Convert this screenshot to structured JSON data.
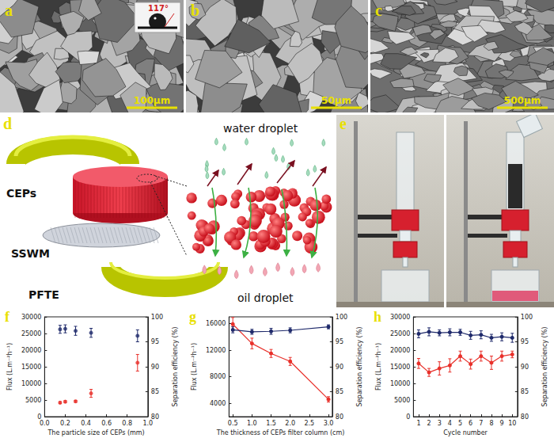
{
  "panels": {
    "a": {
      "label": "a",
      "scale_bar": "100μm",
      "contact_angle": "117°"
    },
    "b": {
      "label": "b",
      "scale_bar": "50μm"
    },
    "c": {
      "label": "c",
      "scale_bar": "500μm"
    },
    "d": {
      "label": "d",
      "parts": [
        "CEPs",
        "SSWM",
        "PFTE"
      ],
      "water": "water droplet",
      "oil": "oil droplet"
    },
    "e": {
      "label": "e"
    }
  },
  "chart_data": [
    {
      "type": "scatter",
      "title": "f",
      "x_label": "The particle size of CEPs (mm)",
      "y_label": "Flux (L.m⁻²h⁻¹)",
      "y2_label": "Separation efficiency (%)",
      "x": [
        0.15,
        0.2,
        0.3,
        0.45,
        0.9
      ],
      "series": [
        {
          "color": "#e8302a",
          "values": [
            4200,
            4500,
            4600,
            7000,
            16200
          ],
          "errors": [
            300,
            300,
            300,
            1200,
            2500
          ]
        },
        {
          "color": "#1f2a6b",
          "axis": "y2",
          "values": [
            97.5,
            97.6,
            97.2,
            96.8,
            96.2
          ],
          "errors": [
            0.8,
            0.8,
            0.9,
            0.9,
            1.2
          ]
        }
      ],
      "xlim": [
        0,
        1
      ],
      "xticks": [
        {
          "value": 0,
          "label": "0.0"
        },
        0.2,
        0.4,
        0.6,
        0.8,
        {
          "value": 1,
          "label": "1.0"
        }
      ],
      "ylim": [
        0,
        30000
      ],
      "yticks": [
        0,
        5000,
        10000,
        15000,
        20000,
        25000,
        30000
      ],
      "y2lim": [
        80,
        100
      ],
      "y2ticks": [
        80,
        85,
        90,
        95,
        100
      ],
      "grid": false,
      "marker": "circle"
    },
    {
      "type": "line",
      "title": "g",
      "x_label": "The thickness of CEPs filter column (cm)",
      "y_label": "Flux (L.m⁻²h⁻¹)",
      "y2_label": "Separation efficiency (%)",
      "x": [
        0.5,
        1.0,
        1.5,
        2.0,
        3.0
      ],
      "series": [
        {
          "color": "#e8302a",
          "values": [
            15900,
            13000,
            11500,
            10300,
            4600
          ],
          "errors": [
            1000,
            800,
            600,
            600,
            400
          ]
        },
        {
          "color": "#1f2a6b",
          "axis": "y2",
          "values": [
            97.4,
            97.0,
            97.1,
            97.3,
            98.0
          ],
          "errors": [
            0.6,
            0.5,
            0.6,
            0.5,
            0.4
          ]
        }
      ],
      "xlim": [
        0.4,
        3.1
      ],
      "xticks": [
        0.5,
        {
          "value": 1,
          "label": "1.0"
        },
        1.5,
        {
          "value": 2,
          "label": "2.0"
        },
        2.5,
        {
          "value": 3,
          "label": "3.0"
        }
      ],
      "ylim": [
        2000,
        17000
      ],
      "yticks": [
        4000,
        8000,
        12000,
        16000
      ],
      "y2lim": [
        80,
        100
      ],
      "y2ticks": [
        80,
        85,
        90,
        95,
        100
      ],
      "grid": false,
      "marker": "circle"
    },
    {
      "type": "line",
      "title": "h",
      "x_label": "Cycle number",
      "y_label": "Flux (L.m⁻²h⁻¹)",
      "y2_label": "Separation efficiency (%)",
      "x": [
        1,
        2,
        3,
        4,
        5,
        6,
        7,
        8,
        9,
        10
      ],
      "series": [
        {
          "color": "#e8302a",
          "values": [
            16000,
            13300,
            14500,
            15400,
            18200,
            15800,
            18200,
            16200,
            18200,
            18700
          ],
          "errors": [
            1500,
            1200,
            2000,
            2000,
            1500,
            1500,
            1500,
            2000,
            1500,
            1000
          ]
        },
        {
          "color": "#1f2a6b",
          "axis": "y2",
          "values": [
            96.6,
            97.0,
            96.8,
            96.9,
            96.9,
            96.3,
            96.4,
            95.8,
            96.0,
            95.8
          ],
          "errors": [
            0.8,
            0.8,
            0.6,
            0.7,
            0.6,
            0.8,
            0.8,
            0.7,
            0.8,
            0.9
          ]
        }
      ],
      "xlim": [
        0.5,
        10.5
      ],
      "xticks": [
        1,
        2,
        3,
        4,
        5,
        6,
        7,
        8,
        9,
        10
      ],
      "ylim": [
        0,
        30000
      ],
      "yticks": [
        0,
        5000,
        10000,
        15000,
        20000,
        25000,
        30000
      ],
      "y2lim": [
        80,
        100
      ],
      "y2ticks": [
        80,
        85,
        90,
        95,
        100
      ],
      "grid": false,
      "marker": "circle"
    }
  ]
}
